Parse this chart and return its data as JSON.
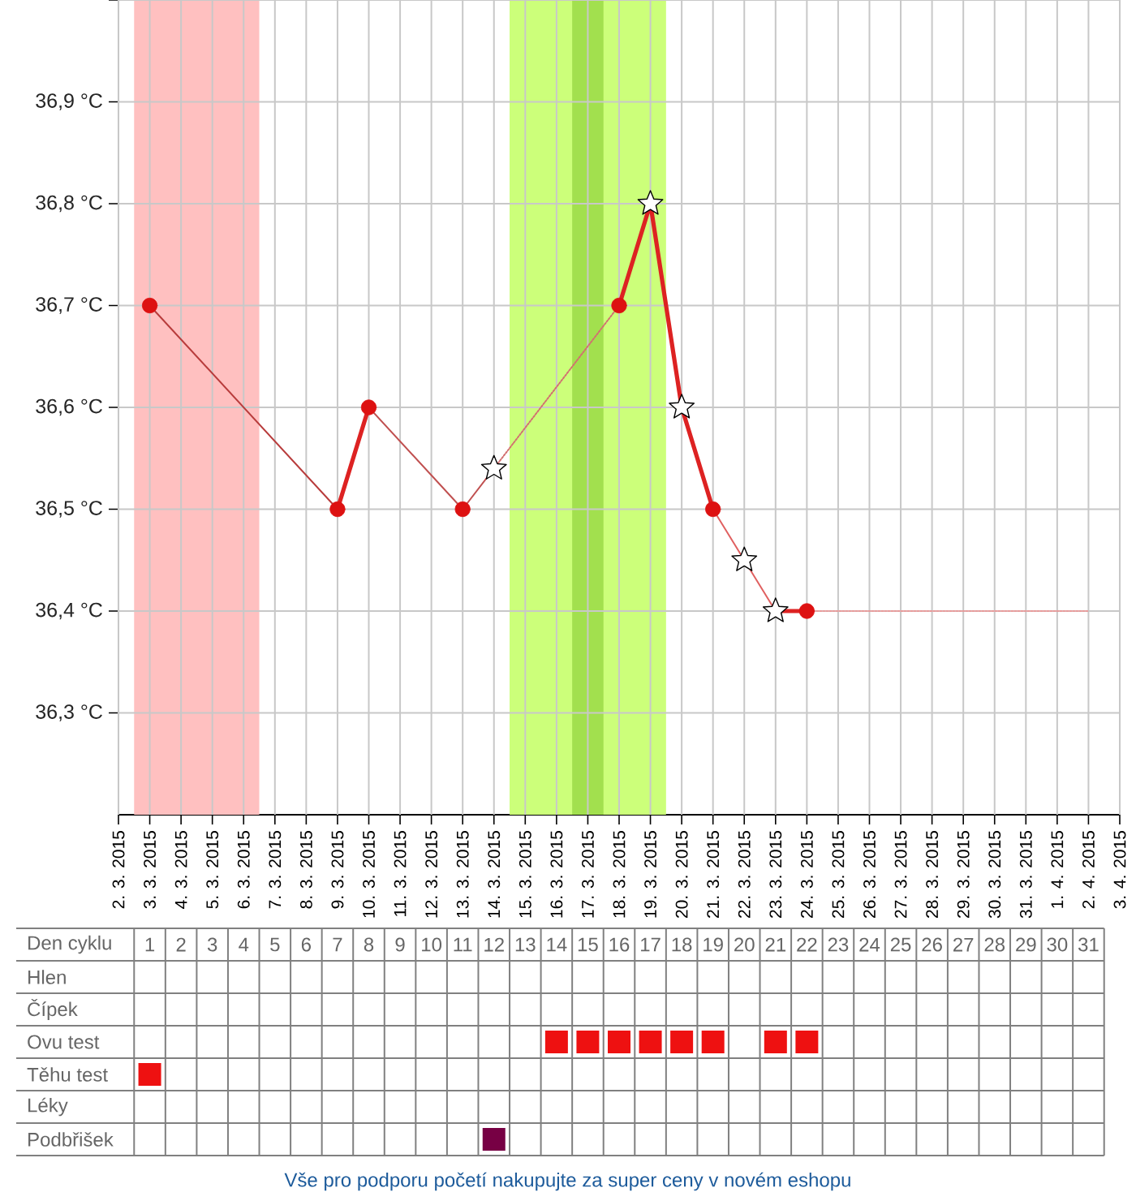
{
  "chart_data": [
    {
      "type": "line",
      "xlim": [
        "2015-03-02",
        "2015-04-03"
      ],
      "xticks": [
        {
          "value": "2015-03-02",
          "label": "2. 3. 2015"
        },
        {
          "value": "2015-03-03",
          "label": "3. 3. 2015"
        },
        {
          "value": "2015-03-04",
          "label": "4. 3. 2015"
        },
        {
          "value": "2015-03-05",
          "label": "5. 3. 2015"
        },
        {
          "value": "2015-03-06",
          "label": "6. 3. 2015"
        },
        {
          "value": "2015-03-07",
          "label": "7. 3. 2015"
        },
        {
          "value": "2015-03-08",
          "label": "8. 3. 2015"
        },
        {
          "value": "2015-03-09",
          "label": "9. 3. 2015"
        },
        {
          "value": "2015-03-10",
          "label": "10. 3. 2015"
        },
        {
          "value": "2015-03-11",
          "label": "11. 3. 2015"
        },
        {
          "value": "2015-03-12",
          "label": "12. 3. 2015"
        },
        {
          "value": "2015-03-13",
          "label": "13. 3. 2015"
        },
        {
          "value": "2015-03-14",
          "label": "14. 3. 2015"
        },
        {
          "value": "2015-03-15",
          "label": "15. 3. 2015"
        },
        {
          "value": "2015-03-16",
          "label": "16. 3. 2015"
        },
        {
          "value": "2015-03-17",
          "label": "17. 3. 2015"
        },
        {
          "value": "2015-03-18",
          "label": "18. 3. 2015"
        },
        {
          "value": "2015-03-19",
          "label": "19. 3. 2015"
        },
        {
          "value": "2015-03-20",
          "label": "20. 3. 2015"
        },
        {
          "value": "2015-03-21",
          "label": "21. 3. 2015"
        },
        {
          "value": "2015-03-22",
          "label": "22. 3. 2015"
        },
        {
          "value": "2015-03-23",
          "label": "23. 3. 2015"
        },
        {
          "value": "2015-03-24",
          "label": "24. 3. 2015"
        },
        {
          "value": "2015-03-25",
          "label": "25. 3. 2015"
        },
        {
          "value": "2015-03-26",
          "label": "26. 3. 2015"
        },
        {
          "value": "2015-03-27",
          "label": "27. 3. 2015"
        },
        {
          "value": "2015-03-28",
          "label": "28. 3. 2015"
        },
        {
          "value": "2015-03-29",
          "label": "29. 3. 2015"
        },
        {
          "value": "2015-03-30",
          "label": "30. 3. 2015"
        },
        {
          "value": "2015-03-31",
          "label": "31. 3. 2015"
        },
        {
          "value": "2015-04-01",
          "label": "1. 4. 2015"
        },
        {
          "value": "2015-04-02",
          "label": "2. 4. 2015"
        },
        {
          "value": "2015-04-03",
          "label": "3. 4. 2015"
        }
      ],
      "ylim": [
        36.2,
        37.0
      ],
      "yticks": [
        {
          "value": 36.3,
          "label": "36,3 °C"
        },
        {
          "value": 36.4,
          "label": "36,4 °C"
        },
        {
          "value": 36.5,
          "label": "36,5 °C"
        },
        {
          "value": 36.6,
          "label": "36,6 °C"
        },
        {
          "value": 36.7,
          "label": "36,7 °C"
        },
        {
          "value": 36.8,
          "label": "36,8 °C"
        },
        {
          "value": 36.9,
          "label": "36,9 °C"
        },
        {
          "value": 37.0,
          "label": null
        }
      ],
      "grid": true,
      "bands": [
        {
          "axis": "x",
          "from": "2015-03-02T12:00",
          "to": "2015-03-06T12:00",
          "color": "#ffc0c0"
        },
        {
          "axis": "x",
          "from": "2015-03-14T12:00",
          "to": "2015-03-19T12:00",
          "color": "#ccff7a"
        },
        {
          "axis": "x",
          "from": "2015-03-16T12:00",
          "to": "2015-03-17T12:00",
          "color": "#a2e04e"
        }
      ],
      "series": [
        {
          "type": "line",
          "color": "#dd2222",
          "marker": "none",
          "line_style": "solid",
          "x": [
            "2015-03-09",
            "2015-03-10",
            "2015-03-11",
            "2015-03-18",
            "2015-03-19",
            "2015-03-20",
            "2015-03-21",
            "2015-03-22",
            "2015-03-23",
            "2015-03-24"
          ],
          "values": [
            36.5,
            36.6,
            null,
            36.7,
            36.8,
            36.6,
            36.5,
            null,
            36.4,
            36.4
          ]
        },
        {
          "type": "line",
          "color": "#b83c3c",
          "marker": "none",
          "line_style": "solid",
          "x": [
            "2015-03-03",
            "2015-03-09"
          ],
          "values": [
            36.7,
            36.5
          ]
        },
        {
          "type": "line",
          "color": "#c05050",
          "marker": "none",
          "line_style": "solid",
          "x": [
            "2015-03-10",
            "2015-03-13",
            "2015-03-14"
          ],
          "values": [
            36.6,
            36.5,
            36.54
          ]
        },
        {
          "type": "line",
          "color": "#d27070",
          "marker": "none",
          "line_style": "dotted",
          "x": [
            "2015-03-14",
            "2015-03-18"
          ],
          "values": [
            36.54,
            36.7
          ]
        },
        {
          "type": "line",
          "color": "#e06060",
          "marker": "none",
          "line_style": "solid",
          "x": [
            "2015-03-21",
            "2015-03-22",
            "2015-03-23"
          ],
          "values": [
            36.5,
            36.45,
            36.4
          ]
        },
        {
          "type": "line",
          "color": "#e89a9a",
          "marker": "none",
          "line_style": "dotted",
          "x": [
            "2015-03-24",
            "2015-04-02"
          ],
          "values": [
            36.4,
            36.4
          ]
        },
        {
          "type": "scatter",
          "color": "#dd1111",
          "marker": "circle",
          "x": [
            "2015-03-03",
            "2015-03-09",
            "2015-03-10",
            "2015-03-13",
            "2015-03-18",
            "2015-03-21",
            "2015-03-24"
          ],
          "values": [
            36.7,
            36.5,
            36.6,
            36.5,
            36.7,
            36.5,
            36.4
          ]
        },
        {
          "type": "scatter",
          "color": "#ffffff",
          "marker": "star",
          "x": [
            "2015-03-14",
            "2015-03-19",
            "2015-03-20",
            "2015-03-22",
            "2015-03-23"
          ],
          "values": [
            36.54,
            36.8,
            36.6,
            36.45,
            36.4
          ]
        }
      ]
    },
    {
      "type": "heatmap",
      "xlabel": "Den cyklu",
      "categories": [
        "1",
        "2",
        "3",
        "4",
        "5",
        "6",
        "7",
        "8",
        "9",
        "10",
        "11",
        "12",
        "13",
        "14",
        "15",
        "16",
        "17",
        "18",
        "19",
        "20",
        "21",
        "22",
        "23",
        "24",
        "25",
        "26",
        "27",
        "28",
        "29",
        "30",
        "31"
      ],
      "y_categories": [
        "Hlen",
        "Čípek",
        "Ovu test",
        "Těhu test",
        "Léky",
        "Podbřišek"
      ],
      "cells": [
        [
          null,
          null,
          null,
          null,
          null,
          null,
          null,
          null,
          null,
          null,
          null,
          null,
          null,
          null,
          null,
          null,
          null,
          null,
          null,
          null,
          null,
          null,
          null,
          null,
          null,
          null,
          null,
          null,
          null,
          null,
          null
        ],
        [
          null,
          null,
          null,
          null,
          null,
          null,
          null,
          null,
          null,
          null,
          null,
          null,
          null,
          null,
          null,
          null,
          null,
          null,
          null,
          null,
          null,
          null,
          null,
          null,
          null,
          null,
          null,
          null,
          null,
          null,
          null
        ],
        [
          null,
          null,
          null,
          null,
          null,
          null,
          null,
          null,
          null,
          null,
          null,
          null,
          null,
          true,
          true,
          true,
          true,
          true,
          true,
          null,
          true,
          true,
          null,
          null,
          null,
          null,
          null,
          null,
          null,
          null,
          null
        ],
        [
          true,
          null,
          null,
          null,
          null,
          null,
          null,
          null,
          null,
          null,
          null,
          null,
          null,
          null,
          null,
          null,
          null,
          null,
          null,
          null,
          null,
          null,
          null,
          null,
          null,
          null,
          null,
          null,
          null,
          null,
          null
        ],
        [
          null,
          null,
          null,
          null,
          null,
          null,
          null,
          null,
          null,
          null,
          null,
          null,
          null,
          null,
          null,
          null,
          null,
          null,
          null,
          null,
          null,
          null,
          null,
          null,
          null,
          null,
          null,
          null,
          null,
          null,
          null
        ],
        [
          null,
          null,
          null,
          null,
          null,
          null,
          null,
          null,
          null,
          null,
          null,
          true,
          null,
          null,
          null,
          null,
          null,
          null,
          null,
          null,
          null,
          null,
          null,
          null,
          null,
          null,
          null,
          null,
          null,
          null,
          null
        ]
      ],
      "colors": [
        null,
        null,
        "#ee1111",
        "#ee1111",
        null,
        "#770044"
      ],
      "annotations": [
        "Vše pro podporu početí nakupujte za super ceny v novém eshopu"
      ]
    }
  ]
}
